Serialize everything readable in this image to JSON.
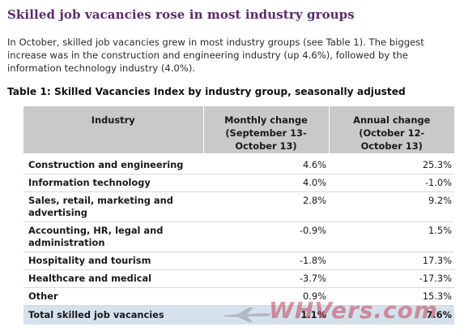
{
  "page": {
    "title": "Skilled job vacancies rose in most industry groups",
    "intro": "In October, skilled job vacancies grew in most industry groups (see Table 1). The biggest increase was in the construction and engineering industry (up 4.6%), followed by the information technology industry (4.0%)."
  },
  "table": {
    "title": "Table 1: Skilled Vacancies Index by industry group, seasonally adjusted",
    "headers": {
      "industry": "Industry",
      "monthly": "Monthly change (September 13- October 13)",
      "annual": "Annual change (October 12- October 13)"
    },
    "rows": [
      {
        "industry": "Construction and engineering",
        "monthly": "4.6%",
        "annual": "25.3%"
      },
      {
        "industry": "Information technology",
        "monthly": "4.0%",
        "annual": "-1.0%"
      },
      {
        "industry": "Sales, retail, marketing and advertising",
        "monthly": "2.8%",
        "annual": "9.2%"
      },
      {
        "industry": "Accounting, HR, legal and administration",
        "monthly": "-0.9%",
        "annual": "1.5%"
      },
      {
        "industry": "Hospitality and tourism",
        "monthly": "-1.8%",
        "annual": "17.3%"
      },
      {
        "industry": "Healthcare and medical",
        "monthly": "-3.7%",
        "annual": "-17.3%"
      },
      {
        "industry": "Other",
        "monthly": "0.9%",
        "annual": "15.3%"
      }
    ],
    "total": {
      "industry": "Total skilled job vacancies",
      "monthly": "1.1%",
      "annual": "7.6%"
    }
  },
  "watermark": {
    "text": "WHVers.com",
    "icon": "airplane-icon",
    "color": "#be465a"
  }
}
